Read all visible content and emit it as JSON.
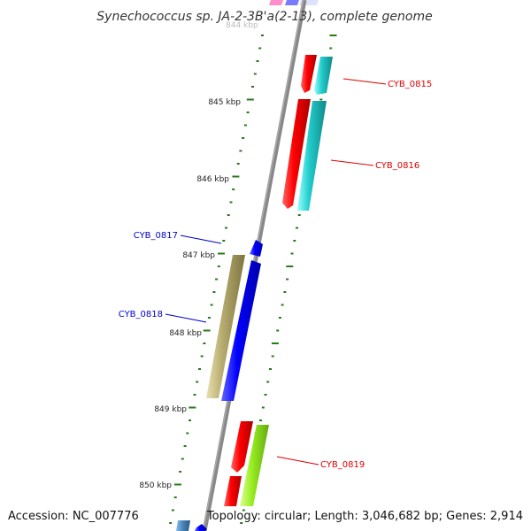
{
  "title": "Synechococcus sp. JA-2-3B'a(2-13), complete genome",
  "faded_scale_label": "844 kbp",
  "scale_labels": [
    "845 kbp",
    "846 kbp",
    "847 kbp",
    "848 kbp",
    "849 kbp",
    "850 kbp"
  ],
  "gene_labels": [
    {
      "id": "CYB_0815",
      "color": "#dd0000"
    },
    {
      "id": "CYB_0816",
      "color": "#dd0000"
    },
    {
      "id": "CYB_0817",
      "color": "#0000cc"
    },
    {
      "id": "CYB_0818",
      "color": "#0000cc"
    },
    {
      "id": "CYB_0819",
      "color": "#dd0000"
    }
  ],
  "footer": {
    "accession": "Accession: NC_007776",
    "summary": "Topology: circular; Length: 3,046,682 bp; Genes: 2,914"
  },
  "colors": {
    "backbone": "#888888",
    "tick": "#2a7a1a",
    "red": "#ee0000",
    "cyan": "#22cccc",
    "blue": "#0000ee",
    "khaki": "#b5aa6a",
    "lime": "#99ee22",
    "steel": "#4682b4"
  }
}
